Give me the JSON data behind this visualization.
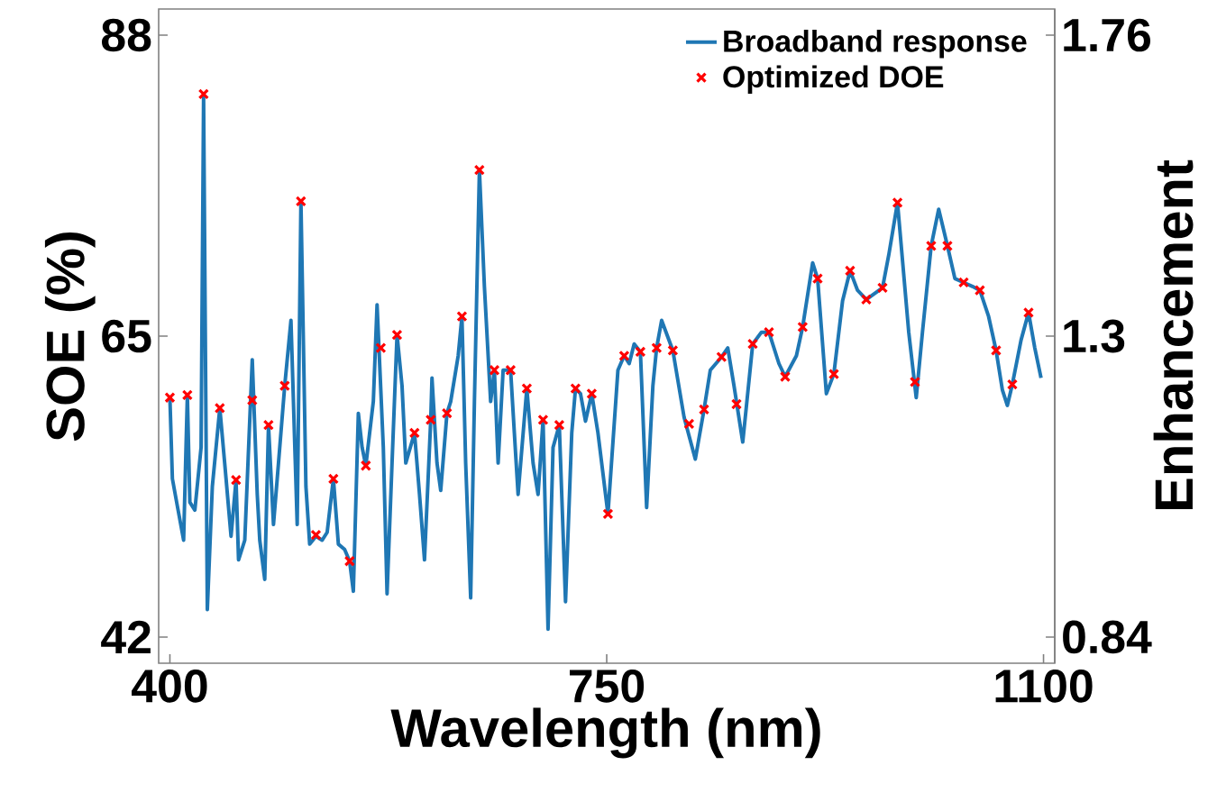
{
  "chart_data": {
    "type": "line",
    "xlabel": "Wavelength (nm)",
    "ylabel": "SOE (%)",
    "y2label": "Enhancement",
    "xlim": [
      391,
      1109
    ],
    "xticks": [
      400,
      750,
      1100
    ],
    "ylim": [
      40,
      90
    ],
    "yticks": [
      42,
      65,
      88
    ],
    "y2lim": [
      0.8,
      1.8
    ],
    "y2ticks": [
      0.84,
      1.3,
      1.76
    ],
    "legend": "top right",
    "grid": false,
    "series": [
      {
        "name": "Broadband response",
        "color": "#1f77b4",
        "marker": "none",
        "line_style": "solid",
        "x": [
          400,
          402,
          406,
          411,
          414,
          416,
          420,
          425,
          427,
          430,
          434,
          440,
          445,
          449,
          453,
          455,
          460,
          466,
          470,
          472,
          476,
          479,
          483,
          486,
          492,
          497,
          502,
          505,
          509,
          512,
          517,
          522,
          526,
          531,
          535,
          540,
          544,
          547,
          551,
          554,
          557,
          563,
          566,
          571,
          574,
          578,
          582,
          586,
          589,
          596,
          600,
          604,
          609,
          610,
          614,
          617,
          622,
          625,
          631,
          634,
          637,
          641,
          644,
          648,
          652,
          657,
          660,
          663,
          667,
          673,
          676,
          679,
          686,
          691,
          695,
          699,
          703,
          707,
          712,
          717,
          722,
          725,
          729,
          733,
          738,
          743,
          751,
          759,
          764,
          768,
          772,
          777,
          782,
          787,
          790,
          794,
          803,
          812,
          821,
          828,
          833,
          842,
          847,
          852,
          859,
          867,
          874,
          880,
          888,
          893,
          902,
          907,
          915,
          919,
          926,
          932,
          939,
          945,
          951,
          958,
          971,
          976,
          983,
          992,
          998,
          1003,
          1010,
          1016,
          1023,
          1029,
          1036,
          1043,
          1049,
          1056,
          1062,
          1067,
          1071,
          1075,
          1082,
          1088,
          1093,
          1098
        ],
        "values": [
          60.3,
          54.1,
          52.0,
          49.4,
          60.5,
          52.3,
          51.7,
          56.5,
          83.3,
          44.1,
          53.5,
          59.5,
          54.1,
          49.7,
          54.0,
          47.9,
          49.4,
          63.2,
          52.9,
          49.4,
          46.4,
          58.2,
          50.6,
          54.1,
          61.2,
          66.2,
          50.6,
          75.3,
          53.5,
          49.1,
          49.7,
          49.4,
          50.0,
          54.1,
          49.1,
          48.7,
          47.8,
          45.5,
          59.1,
          56.5,
          55.1,
          60.0,
          67.4,
          56.5,
          45.3,
          55.3,
          65.1,
          61.2,
          55.3,
          57.6,
          52.9,
          47.9,
          58.6,
          61.8,
          55.3,
          53.2,
          59.1,
          60.0,
          63.5,
          66.5,
          55.3,
          45.0,
          60.0,
          77.7,
          68.8,
          60.0,
          62.4,
          55.3,
          62.4,
          62.4,
          57.6,
          52.9,
          61.0,
          55.3,
          52.9,
          58.6,
          42.6,
          56.5,
          58.2,
          44.7,
          57.6,
          61.0,
          60.6,
          58.5,
          60.6,
          57.6,
          51.4,
          62.4,
          63.5,
          62.9,
          64.4,
          63.8,
          51.9,
          61.2,
          64.1,
          66.2,
          63.9,
          58.8,
          55.6,
          59.4,
          62.4,
          63.4,
          64.1,
          61.2,
          56.9,
          64.4,
          65.3,
          65.3,
          62.9,
          61.9,
          63.5,
          65.7,
          70.6,
          69.4,
          60.6,
          62.1,
          67.7,
          70.0,
          68.5,
          67.8,
          68.7,
          71.2,
          75.2,
          65.3,
          60.3,
          65.3,
          71.9,
          74.7,
          71.9,
          69.4,
          69.1,
          68.8,
          68.5,
          66.5,
          63.9,
          60.9,
          59.7,
          61.3,
          64.7,
          66.8,
          64.1,
          61.8
        ]
      },
      {
        "name": "Optimized DOE",
        "type": "scatter",
        "color": "#ff0000",
        "marker": "cross",
        "x": [
          400,
          414,
          427,
          440,
          453,
          466,
          479,
          492,
          505,
          517,
          531,
          544,
          557,
          569,
          582,
          596,
          609,
          622,
          634,
          648,
          660,
          673,
          686,
          699,
          712,
          725,
          738,
          751,
          764,
          777,
          790,
          803,
          816,
          828,
          842,
          854,
          867,
          880,
          893,
          907,
          919,
          932,
          945,
          958,
          971,
          983,
          997,
          1010,
          1023,
          1036,
          1049,
          1062,
          1075,
          1088
        ],
        "values": [
          60.3,
          60.5,
          83.5,
          59.5,
          54.0,
          60.1,
          58.2,
          61.2,
          75.3,
          49.8,
          54.1,
          47.8,
          55.1,
          64.1,
          65.1,
          57.6,
          58.6,
          59.1,
          66.5,
          77.7,
          62.4,
          62.4,
          61.0,
          58.6,
          58.2,
          61.0,
          60.6,
          51.4,
          63.5,
          63.8,
          64.1,
          63.9,
          58.3,
          59.4,
          63.4,
          59.8,
          64.4,
          65.3,
          61.9,
          65.7,
          69.4,
          62.1,
          70.0,
          67.8,
          68.7,
          75.2,
          61.5,
          71.9,
          71.9,
          69.1,
          68.5,
          63.9,
          61.3,
          66.8
        ]
      }
    ]
  }
}
